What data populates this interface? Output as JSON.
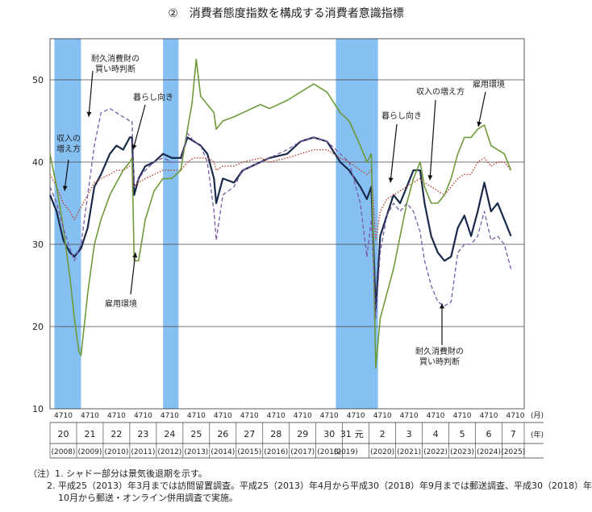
{
  "title": "②　消費者態度指数を構成する消費者意識指標",
  "notes": [
    "（注）1. シャドー部分は景気後退期を示す。",
    "2. 平成25（2013）年3月までは訪問留置調査。平成25（2013）年4月から平成30（2018）年9月までは郵送調査、平成30（2018）年",
    "10月から郵送・オンライン併用調査で実施。"
  ],
  "chart_data": {
    "type": "line",
    "ylim": [
      10,
      55
    ],
    "yticks": [
      "10",
      "20",
      "30",
      "40",
      "50"
    ],
    "x_unit_month": "(月)",
    "x_unit_year": "(年)",
    "month_ticks": "4 7 10",
    "years": [
      {
        "era": "20",
        "ad": "(2008)"
      },
      {
        "era": "21",
        "ad": "(2009)"
      },
      {
        "era": "22",
        "ad": "(2010)"
      },
      {
        "era": "23",
        "ad": "(2011)"
      },
      {
        "era": "24",
        "ad": "(2012)"
      },
      {
        "era": "25",
        "ad": "(2013)"
      },
      {
        "era": "26",
        "ad": "(2014)"
      },
      {
        "era": "27",
        "ad": "(2015)"
      },
      {
        "era": "28",
        "ad": "(2016)"
      },
      {
        "era": "29",
        "ad": "(2017)"
      },
      {
        "era": "30",
        "ad": "(2018)"
      },
      {
        "era": "31",
        "ad": "(2019)"
      },
      {
        "era": "元",
        "ad": ""
      },
      {
        "era": "2",
        "ad": "(2020)"
      },
      {
        "era": "3",
        "ad": "(2021)"
      },
      {
        "era": "4",
        "ad": "(2022)"
      },
      {
        "era": "5",
        "ad": "(2023)"
      },
      {
        "era": "6",
        "ad": "(2024)"
      },
      {
        "era": "7",
        "ad": "(2025)"
      }
    ],
    "x_start": "2008-01",
    "recessions": [
      [
        "2008-03",
        "2009-03"
      ],
      [
        "2012-04",
        "2012-11"
      ],
      [
        "2018-10",
        "2020-05"
      ]
    ],
    "series": [
      {
        "name": "暮らし向き",
        "color": "#1a2a4a",
        "style": "solid",
        "width": 2.2,
        "points": [
          [
            "2008-01",
            36
          ],
          [
            "2008-04",
            34
          ],
          [
            "2008-07",
            30.5
          ],
          [
            "2008-10",
            29
          ],
          [
            "2008-12",
            28.5
          ],
          [
            "2009-03",
            29.5
          ],
          [
            "2009-06",
            32
          ],
          [
            "2009-09",
            37
          ],
          [
            "2009-12",
            38.5
          ],
          [
            "2010-04",
            41
          ],
          [
            "2010-07",
            42
          ],
          [
            "2010-10",
            41.5
          ],
          [
            "2011-01",
            43
          ],
          [
            "2011-02",
            43
          ],
          [
            "2011-03",
            36
          ],
          [
            "2011-05",
            38
          ],
          [
            "2011-08",
            39.5
          ],
          [
            "2011-12",
            40
          ],
          [
            "2012-04",
            41
          ],
          [
            "2012-08",
            40.5
          ],
          [
            "2012-12",
            40.5
          ],
          [
            "2013-03",
            43
          ],
          [
            "2013-06",
            42.5
          ],
          [
            "2013-09",
            42
          ],
          [
            "2013-12",
            41
          ],
          [
            "2014-03",
            38
          ],
          [
            "2014-04",
            35
          ],
          [
            "2014-07",
            38
          ],
          [
            "2014-12",
            37.5
          ],
          [
            "2015-04",
            39
          ],
          [
            "2015-12",
            40
          ],
          [
            "2016-04",
            40.5
          ],
          [
            "2016-12",
            41
          ],
          [
            "2017-06",
            42.5
          ],
          [
            "2017-12",
            43
          ],
          [
            "2018-06",
            42.5
          ],
          [
            "2018-12",
            40
          ],
          [
            "2019-04",
            39
          ],
          [
            "2019-09",
            37
          ],
          [
            "2019-12",
            35.5
          ],
          [
            "2020-02",
            37
          ],
          [
            "2020-04",
            22
          ],
          [
            "2020-06",
            31
          ],
          [
            "2020-09",
            33.5
          ],
          [
            "2020-12",
            36
          ],
          [
            "2021-03",
            35
          ],
          [
            "2021-06",
            37
          ],
          [
            "2021-09",
            39
          ],
          [
            "2021-12",
            39
          ],
          [
            "2022-02",
            35
          ],
          [
            "2022-05",
            31
          ],
          [
            "2022-08",
            29
          ],
          [
            "2022-11",
            28
          ],
          [
            "2023-02",
            28.5
          ],
          [
            "2023-05",
            32
          ],
          [
            "2023-08",
            33.5
          ],
          [
            "2023-11",
            31
          ],
          [
            "2024-02",
            34
          ],
          [
            "2024-05",
            37.5
          ],
          [
            "2024-08",
            34
          ],
          [
            "2024-11",
            35
          ],
          [
            "2025-02",
            33
          ],
          [
            "2025-05",
            31
          ]
        ]
      },
      {
        "name": "収入の増え方",
        "color": "#b8412a",
        "style": "dotted",
        "width": 1.4,
        "points": [
          [
            "2008-01",
            38.5
          ],
          [
            "2008-04",
            37
          ],
          [
            "2008-07",
            35
          ],
          [
            "2008-10",
            34
          ],
          [
            "2008-12",
            33
          ],
          [
            "2009-03",
            34.5
          ],
          [
            "2009-06",
            36
          ],
          [
            "2009-09",
            37.5
          ],
          [
            "2009-12",
            38
          ],
          [
            "2010-04",
            38.5
          ],
          [
            "2010-07",
            39
          ],
          [
            "2010-10",
            39
          ],
          [
            "2011-01",
            39.5
          ],
          [
            "2011-02",
            39.5
          ],
          [
            "2011-03",
            37
          ],
          [
            "2011-05",
            37.5
          ],
          [
            "2011-08",
            38
          ],
          [
            "2011-12",
            38.5
          ],
          [
            "2012-04",
            39
          ],
          [
            "2012-08",
            39
          ],
          [
            "2012-12",
            39
          ],
          [
            "2013-03",
            40
          ],
          [
            "2013-06",
            40.5
          ],
          [
            "2013-09",
            40.5
          ],
          [
            "2013-12",
            40.5
          ],
          [
            "2014-03",
            40
          ],
          [
            "2014-04",
            39
          ],
          [
            "2014-07",
            39.5
          ],
          [
            "2014-12",
            39.5
          ],
          [
            "2015-04",
            40
          ],
          [
            "2015-12",
            40.5
          ],
          [
            "2016-04",
            40
          ],
          [
            "2016-12",
            40.5
          ],
          [
            "2017-06",
            41
          ],
          [
            "2017-12",
            41.5
          ],
          [
            "2018-06",
            41.5
          ],
          [
            "2018-12",
            40.5
          ],
          [
            "2019-04",
            40
          ],
          [
            "2019-09",
            39
          ],
          [
            "2019-12",
            38.5
          ],
          [
            "2020-02",
            39
          ],
          [
            "2020-04",
            30.5
          ],
          [
            "2020-06",
            34
          ],
          [
            "2020-09",
            35.5
          ],
          [
            "2020-12",
            36
          ],
          [
            "2021-03",
            36.5
          ],
          [
            "2021-06",
            37
          ],
          [
            "2021-09",
            37.5
          ],
          [
            "2021-12",
            38
          ],
          [
            "2022-02",
            37.5
          ],
          [
            "2022-05",
            37
          ],
          [
            "2022-08",
            36.5
          ],
          [
            "2022-11",
            36
          ],
          [
            "2023-02",
            37
          ],
          [
            "2023-05",
            38
          ],
          [
            "2023-08",
            38.5
          ],
          [
            "2023-11",
            38.5
          ],
          [
            "2024-02",
            40
          ],
          [
            "2024-05",
            40.5
          ],
          [
            "2024-08",
            39.5
          ],
          [
            "2024-11",
            40
          ],
          [
            "2025-02",
            40
          ],
          [
            "2025-05",
            39
          ]
        ]
      },
      {
        "name": "雇用環境",
        "color": "#6e9a3a",
        "style": "solid",
        "width": 1.6,
        "points": [
          [
            "2008-01",
            41
          ],
          [
            "2008-04",
            37
          ],
          [
            "2008-07",
            32
          ],
          [
            "2008-10",
            26
          ],
          [
            "2008-12",
            21
          ],
          [
            "2009-02",
            17
          ],
          [
            "2009-03",
            16.5
          ],
          [
            "2009-06",
            24
          ],
          [
            "2009-09",
            30
          ],
          [
            "2009-12",
            33
          ],
          [
            "2010-04",
            36
          ],
          [
            "2010-07",
            37.5
          ],
          [
            "2010-10",
            39
          ],
          [
            "2011-01",
            40
          ],
          [
            "2011-02",
            40.5
          ],
          [
            "2011-03",
            28
          ],
          [
            "2011-05",
            28
          ],
          [
            "2011-08",
            33
          ],
          [
            "2011-12",
            36.5
          ],
          [
            "2012-04",
            38
          ],
          [
            "2012-08",
            38
          ],
          [
            "2012-12",
            39
          ],
          [
            "2013-03",
            44
          ],
          [
            "2013-05",
            47
          ],
          [
            "2013-07",
            52.5
          ],
          [
            "2013-09",
            48
          ],
          [
            "2013-12",
            47
          ],
          [
            "2014-03",
            46
          ],
          [
            "2014-04",
            44
          ],
          [
            "2014-07",
            45
          ],
          [
            "2014-12",
            45.5
          ],
          [
            "2015-04",
            46
          ],
          [
            "2015-12",
            47
          ],
          [
            "2016-04",
            46.5
          ],
          [
            "2016-12",
            47.5
          ],
          [
            "2017-06",
            48.5
          ],
          [
            "2017-12",
            49.5
          ],
          [
            "2018-06",
            48.5
          ],
          [
            "2018-12",
            46
          ],
          [
            "2019-04",
            45
          ],
          [
            "2019-09",
            42
          ],
          [
            "2019-12",
            40
          ],
          [
            "2020-02",
            41
          ],
          [
            "2020-04",
            15
          ],
          [
            "2020-06",
            21
          ],
          [
            "2020-09",
            24
          ],
          [
            "2020-12",
            27
          ],
          [
            "2021-03",
            31
          ],
          [
            "2021-06",
            35
          ],
          [
            "2021-09",
            38
          ],
          [
            "2021-12",
            40
          ],
          [
            "2022-02",
            37
          ],
          [
            "2022-05",
            35
          ],
          [
            "2022-08",
            35
          ],
          [
            "2022-11",
            36
          ],
          [
            "2023-02",
            38
          ],
          [
            "2023-05",
            41
          ],
          [
            "2023-08",
            43
          ],
          [
            "2023-11",
            43
          ],
          [
            "2024-02",
            44
          ],
          [
            "2024-05",
            44.5
          ],
          [
            "2024-08",
            42
          ],
          [
            "2024-11",
            41.5
          ],
          [
            "2025-02",
            41
          ],
          [
            "2025-05",
            39
          ]
        ]
      },
      {
        "name": "耐久消費財の\n買い時判断",
        "color": "#7a5aa8",
        "style": "dashed",
        "width": 1.3,
        "points": [
          [
            "2008-01",
            37
          ],
          [
            "2008-04",
            35
          ],
          [
            "2008-07",
            32
          ],
          [
            "2008-10",
            29.5
          ],
          [
            "2008-12",
            28
          ],
          [
            "2009-03",
            30
          ],
          [
            "2009-06",
            36
          ],
          [
            "2009-09",
            42
          ],
          [
            "2009-12",
            46
          ],
          [
            "2010-04",
            46.5
          ],
          [
            "2010-07",
            46
          ],
          [
            "2010-10",
            45.5
          ],
          [
            "2011-01",
            45
          ],
          [
            "2011-02",
            45
          ],
          [
            "2011-03",
            37
          ],
          [
            "2011-05",
            38
          ],
          [
            "2011-08",
            39
          ],
          [
            "2011-12",
            40
          ],
          [
            "2012-04",
            40.5
          ],
          [
            "2012-08",
            40
          ],
          [
            "2012-12",
            40
          ],
          [
            "2013-03",
            43.5
          ],
          [
            "2013-06",
            42.5
          ],
          [
            "2013-09",
            42
          ],
          [
            "2013-12",
            40
          ],
          [
            "2014-03",
            34
          ],
          [
            "2014-04",
            30.5
          ],
          [
            "2014-07",
            36
          ],
          [
            "2014-12",
            37
          ],
          [
            "2015-04",
            39
          ],
          [
            "2015-12",
            40
          ],
          [
            "2016-04",
            40.5
          ],
          [
            "2016-12",
            41.5
          ],
          [
            "2017-06",
            42.5
          ],
          [
            "2017-12",
            43
          ],
          [
            "2018-06",
            42.5
          ],
          [
            "2018-12",
            41
          ],
          [
            "2019-04",
            40
          ],
          [
            "2019-09",
            35
          ],
          [
            "2019-12",
            28.5
          ],
          [
            "2020-02",
            33
          ],
          [
            "2020-04",
            21
          ],
          [
            "2020-06",
            29
          ],
          [
            "2020-09",
            33.5
          ],
          [
            "2020-12",
            35
          ],
          [
            "2021-03",
            34
          ],
          [
            "2021-06",
            35
          ],
          [
            "2021-09",
            34
          ],
          [
            "2021-12",
            31.5
          ],
          [
            "2022-02",
            28
          ],
          [
            "2022-05",
            25
          ],
          [
            "2022-08",
            23
          ],
          [
            "2022-11",
            22.5
          ],
          [
            "2023-02",
            23
          ],
          [
            "2023-05",
            29
          ],
          [
            "2023-08",
            30
          ],
          [
            "2023-11",
            30
          ],
          [
            "2024-02",
            31
          ],
          [
            "2024-05",
            34
          ],
          [
            "2024-08",
            30.5
          ],
          [
            "2024-11",
            31
          ],
          [
            "2025-02",
            30
          ],
          [
            "2025-05",
            27
          ]
        ]
      }
    ],
    "annotations": [
      {
        "text": "耐久消費財の\n買い時判断",
        "series": 3
      },
      {
        "text": "暮らし向き",
        "series": 0
      },
      {
        "text": "収入の\n増え方",
        "series": 1
      },
      {
        "text": "雇用環境",
        "series": 2
      },
      {
        "text": "暮らし向き",
        "series": 0
      },
      {
        "text": "収入の増え方",
        "series": 1
      },
      {
        "text": "雇用環境",
        "series": 2
      },
      {
        "text": "耐久消費財の\n買い時判断",
        "series": 3
      }
    ]
  }
}
